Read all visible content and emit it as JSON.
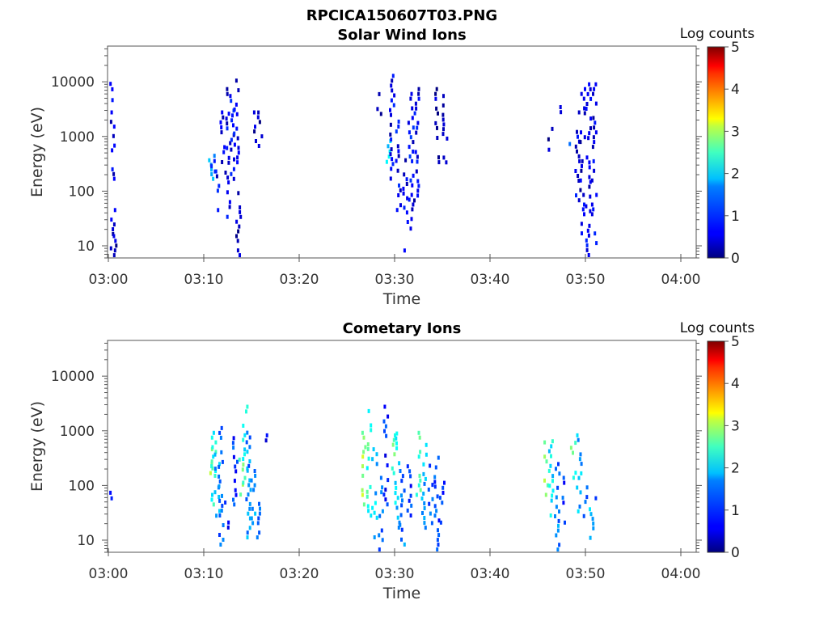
{
  "figure": {
    "title": "RPCICA150607T03.PNG"
  },
  "chart_data": [
    {
      "type": "heatmap",
      "title": "Solar Wind Ions",
      "xlabel": "Time",
      "ylabel": "Energy (eV)",
      "x_ticks": [
        "03:00",
        "03:10",
        "03:20",
        "03:30",
        "03:40",
        "03:50",
        "04:00"
      ],
      "x_range_minutes": [
        0,
        61
      ],
      "y_scale": "log",
      "y_range": [
        6,
        45000
      ],
      "y_ticks": [
        "10",
        "100",
        "1000",
        "10000"
      ],
      "colorbar": {
        "label": "Log counts",
        "range": [
          0,
          5
        ],
        "ticks": [
          "0",
          "1",
          "2",
          "3",
          "4",
          "5"
        ],
        "colormap": "jet"
      },
      "cells": [
        {
          "t": 0.2,
          "e_min": 4000,
          "e_max": 10000,
          "v": 0.5
        },
        {
          "t": 0.3,
          "e_min": 150,
          "e_max": 3000,
          "v": 0.4
        },
        {
          "t": 0.4,
          "e_min": 8,
          "e_max": 60,
          "v": 0.5
        },
        {
          "t": 0.6,
          "e_min": 6,
          "e_max": 20,
          "v": 0.3
        },
        {
          "t": 10.6,
          "e_min": 150,
          "e_max": 400,
          "v": 1.6
        },
        {
          "t": 10.9,
          "e_min": 200,
          "e_max": 600,
          "v": 1.0
        },
        {
          "t": 11.3,
          "e_min": 40,
          "e_max": 250,
          "v": 0.6
        },
        {
          "t": 11.8,
          "e_min": 300,
          "e_max": 3000,
          "v": 0.5
        },
        {
          "t": 12.4,
          "e_min": 30,
          "e_max": 8000,
          "v": 0.5
        },
        {
          "t": 12.9,
          "e_min": 80,
          "e_max": 6000,
          "v": 0.6
        },
        {
          "t": 13.3,
          "e_min": 200,
          "e_max": 14000,
          "v": 0.5
        },
        {
          "t": 13.5,
          "e_min": 6,
          "e_max": 150,
          "v": 0.3
        },
        {
          "t": 15.3,
          "e_min": 600,
          "e_max": 3000,
          "v": 0.3
        },
        {
          "t": 15.8,
          "e_min": 400,
          "e_max": 10000,
          "v": 0.3
        },
        {
          "t": 28.3,
          "e_min": 1500,
          "e_max": 8000,
          "v": 0.3
        },
        {
          "t": 29.3,
          "e_min": 300,
          "e_max": 900,
          "v": 1.8
        },
        {
          "t": 29.6,
          "e_min": 150,
          "e_max": 14000,
          "v": 0.5
        },
        {
          "t": 30.3,
          "e_min": 40,
          "e_max": 2500,
          "v": 0.6
        },
        {
          "t": 31.0,
          "e_min": 6,
          "e_max": 400,
          "v": 0.5
        },
        {
          "t": 31.6,
          "e_min": 15,
          "e_max": 8000,
          "v": 0.6
        },
        {
          "t": 32.2,
          "e_min": 60,
          "e_max": 8000,
          "v": 0.5
        },
        {
          "t": 34.3,
          "e_min": 300,
          "e_max": 8000,
          "v": 0.3
        },
        {
          "t": 35.2,
          "e_min": 300,
          "e_max": 6000,
          "v": 0.3
        },
        {
          "t": 46.2,
          "e_min": 400,
          "e_max": 1500,
          "v": 0.3
        },
        {
          "t": 47.3,
          "e_min": 2000,
          "e_max": 7000,
          "v": 0.3
        },
        {
          "t": 48.4,
          "e_min": 500,
          "e_max": 1000,
          "v": 1.3
        },
        {
          "t": 49.0,
          "e_min": 40,
          "e_max": 3000,
          "v": 0.5
        },
        {
          "t": 49.6,
          "e_min": 15,
          "e_max": 8000,
          "v": 0.4
        },
        {
          "t": 50.2,
          "e_min": 6,
          "e_max": 12000,
          "v": 0.5
        },
        {
          "t": 50.8,
          "e_min": 10,
          "e_max": 12000,
          "v": 0.5
        }
      ]
    },
    {
      "type": "heatmap",
      "title": "Cometary Ions",
      "xlabel": "Time",
      "ylabel": "Energy (eV)",
      "x_ticks": [
        "03:00",
        "03:10",
        "03:20",
        "03:30",
        "03:40",
        "03:50",
        "04:00"
      ],
      "x_range_minutes": [
        0,
        61
      ],
      "y_scale": "log",
      "y_range": [
        6,
        45000
      ],
      "y_ticks": [
        "10",
        "100",
        "1000",
        "10000"
      ],
      "colorbar": {
        "label": "Log counts",
        "range": [
          0,
          5
        ],
        "ticks": [
          "0",
          "1",
          "2",
          "3",
          "4",
          "5"
        ],
        "colormap": "jet"
      },
      "cells": [
        {
          "t": 0.2,
          "e_min": 50,
          "e_max": 80,
          "v": 0.5
        },
        {
          "t": 10.6,
          "e_min": 150,
          "e_max": 500,
          "v": 2.6
        },
        {
          "t": 10.9,
          "e_min": 40,
          "e_max": 1000,
          "v": 2.0
        },
        {
          "t": 11.3,
          "e_min": 25,
          "e_max": 400,
          "v": 1.5
        },
        {
          "t": 11.7,
          "e_min": 6,
          "e_max": 1500,
          "v": 1.1
        },
        {
          "t": 12.3,
          "e_min": 15,
          "e_max": 100,
          "v": 0.8
        },
        {
          "t": 13.2,
          "e_min": 40,
          "e_max": 800,
          "v": 0.9
        },
        {
          "t": 13.8,
          "e_min": 60,
          "e_max": 400,
          "v": 2.5
        },
        {
          "t": 14.2,
          "e_min": 100,
          "e_max": 3000,
          "v": 1.9
        },
        {
          "t": 14.6,
          "e_min": 10,
          "e_max": 1500,
          "v": 1.3
        },
        {
          "t": 15.1,
          "e_min": 15,
          "e_max": 200,
          "v": 1.4
        },
        {
          "t": 15.6,
          "e_min": 10,
          "e_max": 50,
          "v": 1.0
        },
        {
          "t": 16.3,
          "e_min": 200,
          "e_max": 900,
          "v": 0.5
        },
        {
          "t": 26.6,
          "e_min": 40,
          "e_max": 1000,
          "v": 2.6
        },
        {
          "t": 27.2,
          "e_min": 25,
          "e_max": 2500,
          "v": 2.1
        },
        {
          "t": 27.8,
          "e_min": 10,
          "e_max": 500,
          "v": 1.6
        },
        {
          "t": 28.4,
          "e_min": 6,
          "e_max": 150,
          "v": 1.2
        },
        {
          "t": 29.0,
          "e_min": 40,
          "e_max": 3000,
          "v": 0.8
        },
        {
          "t": 29.7,
          "e_min": 150,
          "e_max": 900,
          "v": 2.2
        },
        {
          "t": 30.2,
          "e_min": 15,
          "e_max": 1200,
          "v": 1.6
        },
        {
          "t": 30.7,
          "e_min": 6,
          "e_max": 200,
          "v": 1.2
        },
        {
          "t": 31.4,
          "e_min": 25,
          "e_max": 300,
          "v": 0.9
        },
        {
          "t": 32.4,
          "e_min": 60,
          "e_max": 1000,
          "v": 2.2
        },
        {
          "t": 33.0,
          "e_min": 15,
          "e_max": 600,
          "v": 1.5
        },
        {
          "t": 33.6,
          "e_min": 10,
          "e_max": 250,
          "v": 1.0
        },
        {
          "t": 34.3,
          "e_min": 6,
          "e_max": 350,
          "v": 1.0
        },
        {
          "t": 34.9,
          "e_min": 15,
          "e_max": 150,
          "v": 0.9
        },
        {
          "t": 45.8,
          "e_min": 60,
          "e_max": 1000,
          "v": 2.6
        },
        {
          "t": 46.3,
          "e_min": 25,
          "e_max": 700,
          "v": 1.8
        },
        {
          "t": 46.9,
          "e_min": 6,
          "e_max": 400,
          "v": 1.2
        },
        {
          "t": 47.5,
          "e_min": 15,
          "e_max": 150,
          "v": 0.9
        },
        {
          "t": 48.6,
          "e_min": 80,
          "e_max": 1000,
          "v": 2.2
        },
        {
          "t": 49.2,
          "e_min": 30,
          "e_max": 900,
          "v": 1.5
        },
        {
          "t": 49.9,
          "e_min": 20,
          "e_max": 150,
          "v": 0.9
        },
        {
          "t": 50.5,
          "e_min": 8,
          "e_max": 40,
          "v": 1.5
        },
        {
          "t": 51.2,
          "e_min": 40,
          "e_max": 80,
          "v": 0.6
        }
      ]
    }
  ]
}
